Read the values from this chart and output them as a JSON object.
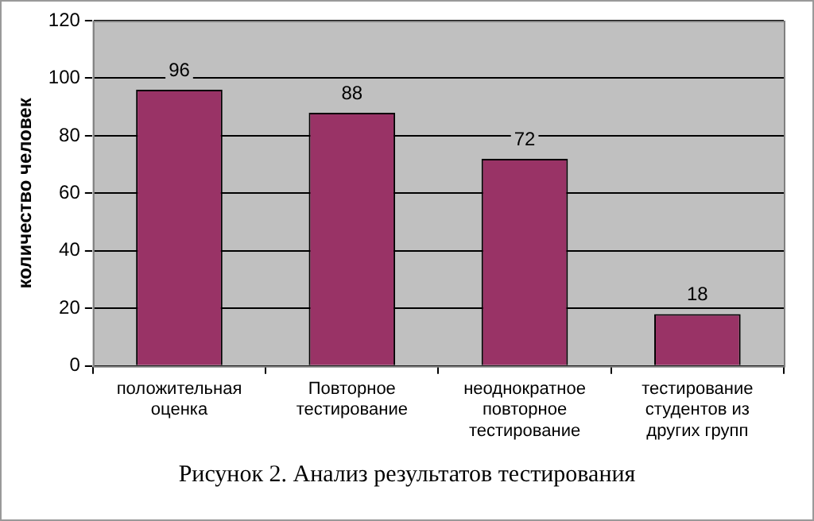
{
  "chart_data": {
    "type": "bar",
    "ylabel": "количество человек",
    "categories": [
      "положительная оценка",
      "Повторное тестирование",
      "неоднократное повторное тестирование",
      "тестирование студентов из других групп"
    ],
    "values": [
      96,
      88,
      72,
      18
    ],
    "color": "#993366",
    "ylim": [
      0,
      120
    ],
    "yticks": [
      0,
      20,
      40,
      60,
      80,
      100,
      120
    ],
    "grid": "y",
    "data_labels": true,
    "annotations": [
      "Рисунок 2. Анализ результатов тестирования"
    ]
  }
}
